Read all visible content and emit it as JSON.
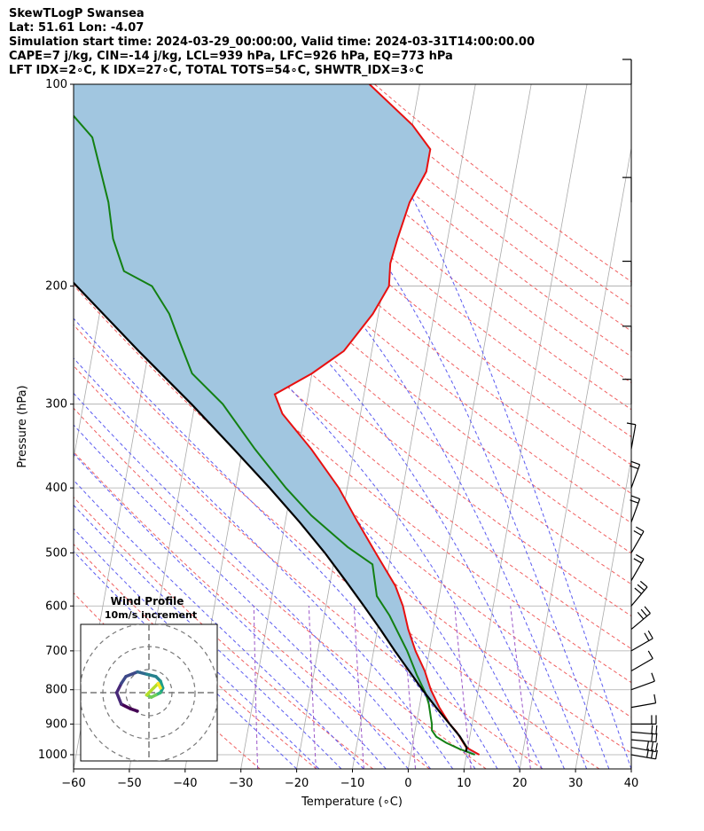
{
  "header": {
    "line1": "SkewTLogP Swansea",
    "line2": "Lat: 51.61   Lon: -4.07",
    "line3": "Simulation start time: 2024-03-29_00:00:00, Valid time: 2024-03-31T14:00:00.00",
    "line4": "CAPE=7 j/kg, CIN=-14 j/kg, LCL=939 hPa, LFC=926 hPa, EQ=773 hPa",
    "line5": "LFT IDX=2∘C, K IDX=27∘C, TOTAL TOTS=54∘C, SHWTR_IDX=3∘C"
  },
  "inset": {
    "title": "Wind Profile",
    "subtitle": "10m/s increment"
  },
  "colors": {
    "temperature": "#e81010",
    "dewpoint": "#138013",
    "parcel": "#000000",
    "cape_fill": "#a1c6e0",
    "dry_adiabat": "#f06060",
    "moist_adiabat": "#5a5af0",
    "mixing_ratio": "#9b55c8",
    "isotherm": "#aaaaaa"
  },
  "chart_data": {
    "type": "line",
    "title": "",
    "xlabel": "Temperature (∘C)",
    "ylabel": "Pressure (hPa)",
    "xlim": [
      -60,
      40
    ],
    "ylim": [
      1050,
      100
    ],
    "yscale": "log",
    "xticks": [
      "−60",
      "−50",
      "−40",
      "−30",
      "−20",
      "−10",
      "0",
      "10",
      "20",
      "30",
      "40"
    ],
    "yticks": [
      "100",
      "200",
      "300",
      "400",
      "500",
      "600",
      "700",
      "800",
      "900",
      "1000"
    ],
    "grid": true,
    "series": [
      {
        "key": "temperature",
        "points": [
          [
            1000,
            12.3
          ],
          [
            975,
            9.7
          ],
          [
            950,
            8.6
          ],
          [
            925,
            7.5
          ],
          [
            900,
            6.0
          ],
          [
            850,
            3.6
          ],
          [
            800,
            1.5
          ],
          [
            750,
            -0.2
          ],
          [
            700,
            -2.5
          ],
          [
            650,
            -4.5
          ],
          [
            600,
            -6.2
          ],
          [
            560,
            -8.2
          ],
          [
            500,
            -12.8
          ],
          [
            450,
            -17.0
          ],
          [
            400,
            -21.5
          ],
          [
            350,
            -27.7
          ],
          [
            310,
            -34.0
          ],
          [
            290,
            -36.0
          ],
          [
            270,
            -30.0
          ],
          [
            250,
            -25.0
          ],
          [
            220,
            -21.0
          ],
          [
            200,
            -19.0
          ],
          [
            185,
            -19.5
          ],
          [
            170,
            -19.0
          ],
          [
            150,
            -18.0
          ],
          [
            135,
            -16.0
          ],
          [
            125,
            -16.0
          ],
          [
            115,
            -20.0
          ],
          [
            100,
            -29.0
          ]
        ]
      },
      {
        "key": "dewpoint",
        "points": [
          [
            1000,
            11.5
          ],
          [
            980,
            8.5
          ],
          [
            960,
            6.0
          ],
          [
            940,
            4.0
          ],
          [
            920,
            3.0
          ],
          [
            900,
            2.8
          ],
          [
            880,
            2.4
          ],
          [
            860,
            2.0
          ],
          [
            840,
            1.6
          ],
          [
            810,
            0.7
          ],
          [
            760,
            -1.5
          ],
          [
            700,
            -4.0
          ],
          [
            620,
            -8.3
          ],
          [
            580,
            -11.2
          ],
          [
            520,
            -13.0
          ],
          [
            490,
            -18.0
          ],
          [
            440,
            -25.5
          ],
          [
            400,
            -31.0
          ],
          [
            350,
            -37.8
          ],
          [
            300,
            -45.0
          ],
          [
            270,
            -51.5
          ],
          [
            240,
            -55.0
          ],
          [
            220,
            -57.5
          ],
          [
            200,
            -61.5
          ],
          [
            190,
            -67.0
          ],
          [
            170,
            -70.0
          ],
          [
            150,
            -72.0
          ],
          [
            120,
            -77.0
          ],
          [
            100,
            -87.0
          ]
        ]
      },
      {
        "key": "parcel",
        "points": [
          [
            990,
            9.8
          ],
          [
            975,
            9.8
          ],
          [
            939,
            8.2
          ],
          [
            900,
            6.0
          ],
          [
            850,
            3.0
          ],
          [
            800,
            0.0
          ],
          [
            750,
            -3.0
          ],
          [
            700,
            -6.2
          ],
          [
            650,
            -9.5
          ],
          [
            600,
            -13.2
          ],
          [
            550,
            -17.3
          ],
          [
            500,
            -21.9
          ],
          [
            450,
            -27.4
          ],
          [
            400,
            -33.9
          ],
          [
            350,
            -41.6
          ],
          [
            300,
            -50.6
          ],
          [
            250,
            -61.8
          ],
          [
            200,
            -75.0
          ],
          [
            150,
            -92.0
          ],
          [
            100,
            -113.0
          ]
        ]
      }
    ],
    "wind_barbs": {
      "pressures": [
        1000,
        975,
        950,
        925,
        900,
        850,
        800,
        750,
        700,
        650,
        600,
        550,
        500,
        450,
        400,
        350,
        300,
        250,
        200,
        150,
        100
      ],
      "speed_kt": [
        30,
        30,
        25,
        25,
        20,
        15,
        10,
        15,
        25,
        35,
        30,
        25,
        25,
        20,
        20,
        15,
        10,
        10,
        10,
        10,
        10
      ]
    },
    "hodograph": {
      "ring_interval": "10 m/s",
      "u": [
        -5,
        -8,
        -12,
        -14,
        -12,
        -10,
        -5,
        -1,
        3,
        5,
        6,
        5,
        3,
        1,
        -1,
        2,
        4,
        5
      ],
      "v": [
        -8,
        -7,
        -5,
        0,
        4,
        7,
        9,
        8,
        7,
        5,
        2,
        0,
        -1,
        -2,
        -1,
        2,
        4,
        2
      ]
    }
  }
}
